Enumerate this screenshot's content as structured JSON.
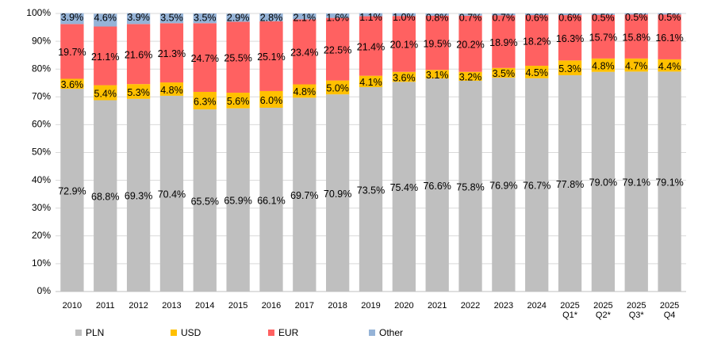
{
  "chart_data": {
    "type": "stacked_bar",
    "categories": [
      "2010",
      "2011",
      "2012",
      "2013",
      "2014",
      "2015",
      "2016",
      "2017",
      "2018",
      "2019",
      "2020",
      "2021",
      "2022",
      "2023",
      "2024",
      "2025 Q1*",
      "2025 Q2*",
      "2025 Q3*",
      "2025 Q4"
    ],
    "series": [
      {
        "name": "PLN",
        "color": "#bfbfbf",
        "values": [
          72.9,
          68.8,
          69.3,
          70.4,
          65.5,
          65.9,
          66.1,
          69.7,
          70.9,
          73.5,
          75.4,
          76.6,
          75.8,
          76.9,
          76.7,
          77.8,
          79.0,
          79.1,
          79.1
        ],
        "value_labels": [
          "72.9%",
          "68.8%",
          "69.3%",
          "70.4%",
          "65.5%",
          "65.9%",
          "66.1%",
          "69.7%",
          "70.9%",
          "73.5%",
          "75.4%",
          "76.6%",
          "75.8%",
          "76.9%",
          "76.7%",
          "77.8%",
          "79.0%",
          "79.1%",
          "79.1%"
        ]
      },
      {
        "name": "USD",
        "color": "#ffc000",
        "values": [
          3.6,
          5.4,
          5.3,
          4.8,
          6.3,
          5.6,
          6.0,
          4.8,
          5.0,
          4.1,
          3.6,
          3.1,
          3.2,
          3.5,
          4.5,
          5.3,
          4.8,
          4.7,
          4.4
        ],
        "value_labels": [
          "3.6%",
          "5.4%",
          "5.3%",
          "4.8%",
          "6.3%",
          "5.6%",
          "6.0%",
          "4.8%",
          "5.0%",
          "4.1%",
          "3.6%",
          "3.1%",
          "3.2%",
          "3.5%",
          "4.5%",
          "5.3%",
          "4.8%",
          "4.7%",
          "4.4%"
        ]
      },
      {
        "name": "EUR",
        "color": "#ff6161",
        "values": [
          19.7,
          21.1,
          21.6,
          21.3,
          24.7,
          25.5,
          25.1,
          23.4,
          22.5,
          21.4,
          20.1,
          19.5,
          20.2,
          18.9,
          18.2,
          16.3,
          15.7,
          15.8,
          16.1
        ],
        "value_labels": [
          "19.7%",
          "21.1%",
          "21.6%",
          "21.3%",
          "24.7%",
          "25.5%",
          "25.1%",
          "23.4%",
          "22.5%",
          "21.4%",
          "20.1%",
          "19.5%",
          "20.2%",
          "18.9%",
          "18.2%",
          "16.3%",
          "15.7%",
          "15.8%",
          "16.1%"
        ]
      },
      {
        "name": "Other",
        "color": "#95b3d7",
        "values": [
          3.9,
          4.6,
          3.9,
          3.5,
          3.5,
          2.9,
          2.8,
          2.1,
          1.6,
          1.1,
          1.0,
          0.8,
          0.7,
          0.7,
          0.6,
          0.6,
          0.5,
          0.5,
          0.5
        ],
        "value_labels": [
          "3.9%",
          "4.6%",
          "3.9%",
          "3.5%",
          "3.5%",
          "2.9%",
          "2.8%",
          "2.1%",
          "1.6%",
          "1.1%",
          "1.0%",
          "0.8%",
          "0.7%",
          "0.7%",
          "0.6%",
          "0.6%",
          "0.5%",
          "0.5%",
          "0.5%"
        ]
      }
    ],
    "ylim": [
      0,
      100
    ],
    "yticks": [
      {
        "value": 0,
        "label": "0%"
      },
      {
        "value": 10,
        "label": "10%"
      },
      {
        "value": 20,
        "label": "20%"
      },
      {
        "value": 30,
        "label": "30%"
      },
      {
        "value": 40,
        "label": "40%"
      },
      {
        "value": 50,
        "label": "50%"
      },
      {
        "value": 60,
        "label": "60%"
      },
      {
        "value": 70,
        "label": "70%"
      },
      {
        "value": 80,
        "label": "80%"
      },
      {
        "value": 90,
        "label": "90%"
      },
      {
        "value": 100,
        "label": "100%"
      }
    ],
    "grid": true,
    "legend": "bottom"
  }
}
